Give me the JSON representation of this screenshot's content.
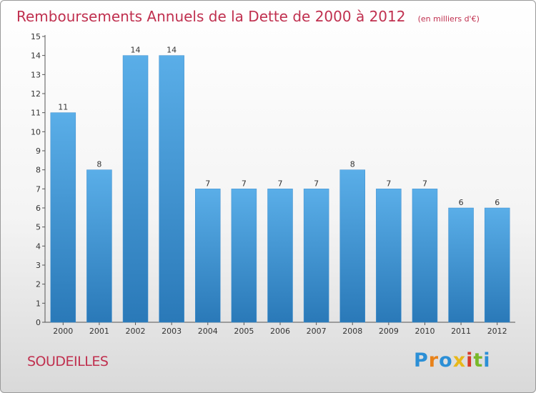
{
  "chart_data": {
    "type": "bar",
    "title": "Remboursements Annuels de la Dette de 2000 à 2012",
    "subtitle": "(en milliers d'€)",
    "categories": [
      "2000",
      "2001",
      "2002",
      "2003",
      "2004",
      "2005",
      "2006",
      "2007",
      "2008",
      "2009",
      "2010",
      "2011",
      "2012"
    ],
    "values": [
      11,
      8,
      14,
      14,
      7,
      7,
      7,
      7,
      8,
      7,
      7,
      6,
      6
    ],
    "ylim": [
      0,
      15
    ],
    "yticks": [
      0,
      1,
      2,
      3,
      4,
      5,
      6,
      7,
      8,
      9,
      10,
      11,
      12,
      13,
      14,
      15
    ],
    "xlabel": "",
    "ylabel": "",
    "grid": false,
    "colors": {
      "bar_top": "#5aaee8",
      "bar_bottom": "#2a79b8"
    }
  },
  "footer": {
    "place": "SOUDEILLES",
    "logo_text": "Proxiti",
    "logo_colors": [
      "#2b8fd6",
      "#e8821a",
      "#2b8fd6",
      "#e8b81a",
      "#d63a2b",
      "#79b82a",
      "#2b8fd6"
    ]
  }
}
